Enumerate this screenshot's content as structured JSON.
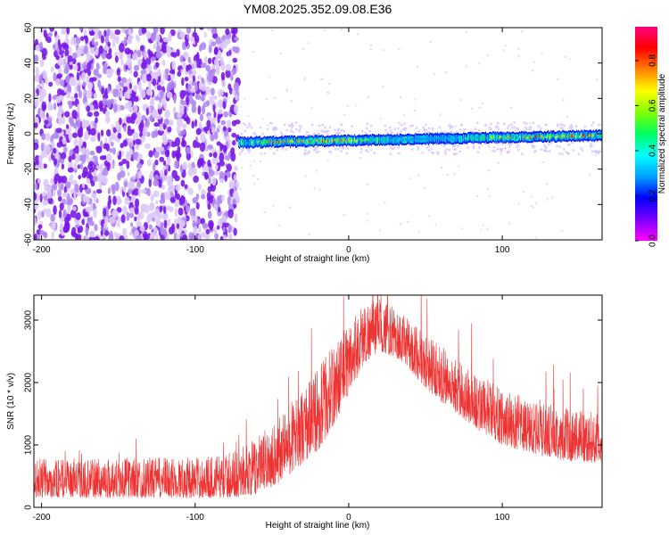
{
  "title": "YM08.2025.352.09.08.E36",
  "chart_data": [
    {
      "type": "heatmap",
      "xlabel": "Height of straight line (km)",
      "ylabel": "Frequency (Hz)",
      "xlim": [
        -205,
        165
      ],
      "ylim": [
        -60,
        60
      ],
      "xticks": [
        -200,
        -100,
        0,
        100
      ],
      "yticks": [
        -60,
        -40,
        -20,
        0,
        20,
        40,
        60
      ],
      "colorbar": {
        "label": "Normalized spectral amplitude",
        "range": [
          0,
          0.95
        ],
        "ticks": [
          0.0,
          0.2,
          0.4,
          0.6,
          0.8
        ],
        "colormap": [
          "#ffffff",
          "#e8d8ff",
          "#7a00ff",
          "#0000ff",
          "#00e0ff",
          "#00ff60",
          "#80ff00",
          "#ffff00",
          "#ff8000",
          "#ff0000",
          "#ff0080"
        ]
      },
      "regions": [
        {
          "name": "noise",
          "x": [
            -205,
            -72
          ],
          "y": [
            -60,
            60
          ],
          "amplitude": [
            0.0,
            0.1
          ]
        },
        {
          "name": "signal_band",
          "x": [
            -72,
            165
          ],
          "y_center": [
            -5,
            -1
          ],
          "width_hz": 6,
          "amplitude": [
            0.2,
            0.95
          ]
        }
      ],
      "grid": false
    },
    {
      "type": "line",
      "xlabel": "Height of straight line (km)",
      "ylabel": "SNR (10 * v/v)",
      "xlim": [
        -205,
        165
      ],
      "ylim": [
        0,
        3400
      ],
      "xticks": [
        -200,
        -100,
        0,
        100
      ],
      "yticks": [
        0,
        1000,
        2000,
        3000
      ],
      "color": "#ee3333",
      "grid": false,
      "envelope": {
        "x": [
          -205,
          -180,
          -150,
          -120,
          -100,
          -80,
          -60,
          -45,
          -30,
          -20,
          -10,
          0,
          10,
          20,
          30,
          40,
          50,
          60,
          80,
          100,
          120,
          140,
          165
        ],
        "low": [
          150,
          150,
          150,
          150,
          150,
          150,
          200,
          400,
          700,
          900,
          1300,
          1800,
          2300,
          2500,
          2400,
          2200,
          1900,
          1700,
          1300,
          1000,
          850,
          750,
          700
        ],
        "high": [
          800,
          750,
          800,
          800,
          800,
          850,
          1100,
          1500,
          1900,
          2300,
          2600,
          3000,
          3300,
          3350,
          3200,
          3000,
          2800,
          2600,
          2200,
          1900,
          1700,
          1600,
          1500
        ]
      }
    }
  ]
}
